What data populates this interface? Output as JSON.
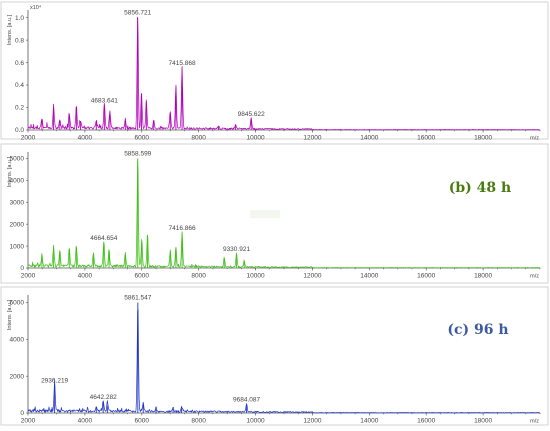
{
  "chart_data": [
    {
      "type": "line",
      "title": "",
      "xlabel": "m/z",
      "ylabel": "Intens. [a.u.]",
      "y_scale_note": "x10⁴",
      "xlim": [
        2000,
        20000
      ],
      "ylim": [
        0,
        1.05
      ],
      "x_ticks": [
        2000,
        4000,
        6000,
        8000,
        10000,
        12000,
        14000,
        16000,
        18000
      ],
      "y_ticks": [
        0.0,
        0.2,
        0.4,
        0.6,
        0.8,
        1.0
      ],
      "color": "#b000b8",
      "peaks": [
        {
          "x": 2490,
          "y": 0.09
        },
        {
          "x": 2900,
          "y": 0.2
        },
        {
          "x": 3120,
          "y": 0.08
        },
        {
          "x": 3450,
          "y": 0.13
        },
        {
          "x": 3700,
          "y": 0.2
        },
        {
          "x": 3850,
          "y": 0.07
        },
        {
          "x": 4400,
          "y": 0.07
        },
        {
          "x": 4683.641,
          "y": 0.22
        },
        {
          "x": 4880,
          "y": 0.15
        },
        {
          "x": 5420,
          "y": 0.08
        },
        {
          "x": 5856.721,
          "y": 1.0
        },
        {
          "x": 5990,
          "y": 0.32
        },
        {
          "x": 6160,
          "y": 0.25
        },
        {
          "x": 6420,
          "y": 0.08
        },
        {
          "x": 7000,
          "y": 0.15
        },
        {
          "x": 7200,
          "y": 0.38
        },
        {
          "x": 7415.868,
          "y": 0.55
        },
        {
          "x": 8700,
          "y": 0.03
        },
        {
          "x": 9300,
          "y": 0.04
        },
        {
          "x": 9845.622,
          "y": 0.1
        }
      ],
      "peak_labels": [
        {
          "x": 4683.641,
          "y": 0.22,
          "text": "4683.641"
        },
        {
          "x": 5856.721,
          "y": 1.0,
          "text": "5856.721"
        },
        {
          "x": 7415.868,
          "y": 0.55,
          "text": "7415.868"
        },
        {
          "x": 9845.622,
          "y": 0.1,
          "text": "9845.622"
        }
      ]
    },
    {
      "type": "line",
      "title": "(b) 48 h",
      "xlabel": "m/z",
      "ylabel": "Intens. [a.u.]",
      "xlim": [
        2000,
        20000
      ],
      "ylim": [
        0,
        5200
      ],
      "x_ticks": [
        2000,
        4000,
        6000,
        8000,
        10000,
        12000,
        14000,
        16000,
        18000
      ],
      "y_ticks": [
        0,
        1000,
        2000,
        3000,
        4000,
        5000
      ],
      "color": "#3fbf17",
      "title_color": "#4a7a10",
      "peaks": [
        {
          "x": 2490,
          "y": 500
        },
        {
          "x": 2900,
          "y": 900
        },
        {
          "x": 3120,
          "y": 700
        },
        {
          "x": 3450,
          "y": 850
        },
        {
          "x": 3700,
          "y": 950
        },
        {
          "x": 4300,
          "y": 600
        },
        {
          "x": 4664.654,
          "y": 1150
        },
        {
          "x": 4850,
          "y": 800
        },
        {
          "x": 5420,
          "y": 600
        },
        {
          "x": 5858.599,
          "y": 5000
        },
        {
          "x": 6000,
          "y": 1200
        },
        {
          "x": 6200,
          "y": 1500
        },
        {
          "x": 7000,
          "y": 700
        },
        {
          "x": 7200,
          "y": 900
        },
        {
          "x": 7416.866,
          "y": 1600
        },
        {
          "x": 8900,
          "y": 400
        },
        {
          "x": 9330.921,
          "y": 650
        },
        {
          "x": 9600,
          "y": 300
        }
      ],
      "peak_labels": [
        {
          "x": 4664.654,
          "y": 1150,
          "text": "4664.654"
        },
        {
          "x": 5858.599,
          "y": 5000,
          "text": "5858.599"
        },
        {
          "x": 7416.866,
          "y": 1600,
          "text": "7416.866"
        },
        {
          "x": 9330.921,
          "y": 650,
          "text": "9330.921"
        }
      ]
    },
    {
      "type": "line",
      "title": "(c) 96 h",
      "xlabel": "m/z",
      "ylabel": "Intens. [a.u.]",
      "xlim": [
        2000,
        20000
      ],
      "ylim": [
        0,
        6300
      ],
      "x_ticks": [
        2000,
        4000,
        6000,
        8000,
        10000,
        12000,
        14000,
        16000,
        18000
      ],
      "y_ticks": [
        0,
        2000,
        4000,
        6000
      ],
      "color": "#1f35c8",
      "title_color": "#3d5aa0",
      "peaks": [
        {
          "x": 2936.219,
          "y": 1500
        },
        {
          "x": 4400,
          "y": 300
        },
        {
          "x": 4642.282,
          "y": 600
        },
        {
          "x": 4800,
          "y": 400
        },
        {
          "x": 5861.547,
          "y": 6000
        },
        {
          "x": 6050,
          "y": 500
        },
        {
          "x": 6500,
          "y": 200
        },
        {
          "x": 7100,
          "y": 200
        },
        {
          "x": 7400,
          "y": 250
        },
        {
          "x": 9684.087,
          "y": 450
        }
      ],
      "peak_labels": [
        {
          "x": 2936.219,
          "y": 1500,
          "text": "2936.219"
        },
        {
          "x": 4642.282,
          "y": 600,
          "text": "4642.282"
        },
        {
          "x": 5861.547,
          "y": 6000,
          "text": "5861.547"
        },
        {
          "x": 9684.087,
          "y": 450,
          "text": "9684.087"
        }
      ]
    }
  ]
}
